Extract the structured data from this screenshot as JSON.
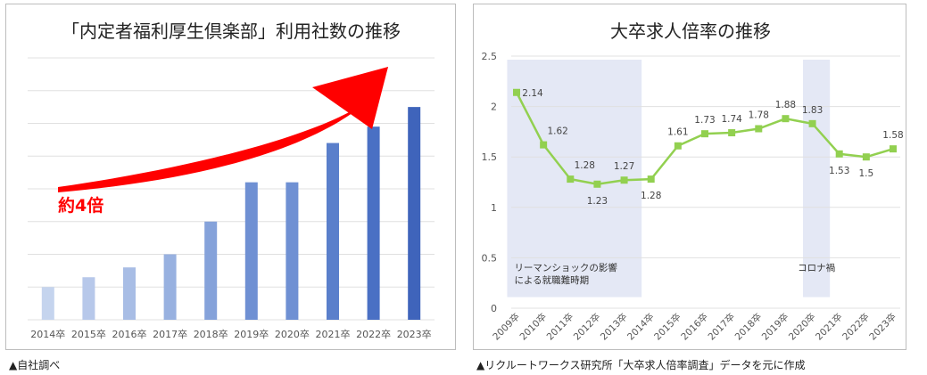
{
  "chart_data": [
    {
      "type": "bar",
      "title": "「内定者福利厚生倶楽部」利用社数の推移",
      "categories": [
        "2014卒",
        "2015卒",
        "2016卒",
        "2017卒",
        "2018卒",
        "2019卒",
        "2020卒",
        "2021卒",
        "2022卒",
        "2023卒"
      ],
      "values": [
        1.0,
        1.3,
        1.6,
        2.0,
        3.0,
        4.2,
        4.2,
        5.4,
        5.9,
        6.5
      ],
      "ylim": [
        0,
        8
      ],
      "grid": true,
      "annotation": "約4倍",
      "colors": [
        "#c5d4ee",
        "#b7c8ea",
        "#a8bde5",
        "#98b1e0",
        "#85a2da",
        "#6f90d3",
        "#6f90d3",
        "#5a7fcb",
        "#4a70c4",
        "#3f64bb"
      ],
      "accent": "#ff0000"
    },
    {
      "type": "line",
      "title": "大卒求人倍率の推移",
      "categories": [
        "2009卒",
        "2010卒",
        "2011卒",
        "2012卒",
        "2013卒",
        "2014卒",
        "2015卒",
        "2016卒",
        "2017卒",
        "2018卒",
        "2019卒",
        "2020卒",
        "2021卒",
        "2022卒",
        "2023卒"
      ],
      "values": [
        2.14,
        1.62,
        1.28,
        1.23,
        1.27,
        1.28,
        1.61,
        1.73,
        1.74,
        1.78,
        1.88,
        1.83,
        1.53,
        1.5,
        1.58
      ],
      "ylim": [
        0,
        2.5
      ],
      "yticks": [
        "0",
        "0.5",
        "1",
        "1.5",
        "2",
        "2.5"
      ],
      "grid": true,
      "line_color": "#92d050",
      "shaded_regions": [
        {
          "start": "2009卒",
          "end": "2014卒",
          "label_lines": [
            "リーマンショックの影響",
            "による就職難時期"
          ]
        },
        {
          "start": "2020卒",
          "end": "2021卒",
          "label_lines": [
            "コロナ禍"
          ]
        }
      ],
      "shade_color": "#e4e8f5"
    }
  ],
  "captions": {
    "left": "▲自社調べ",
    "right": "▲リクルートワークス研究所「大卒求人倍率調査」データを元に作成"
  }
}
